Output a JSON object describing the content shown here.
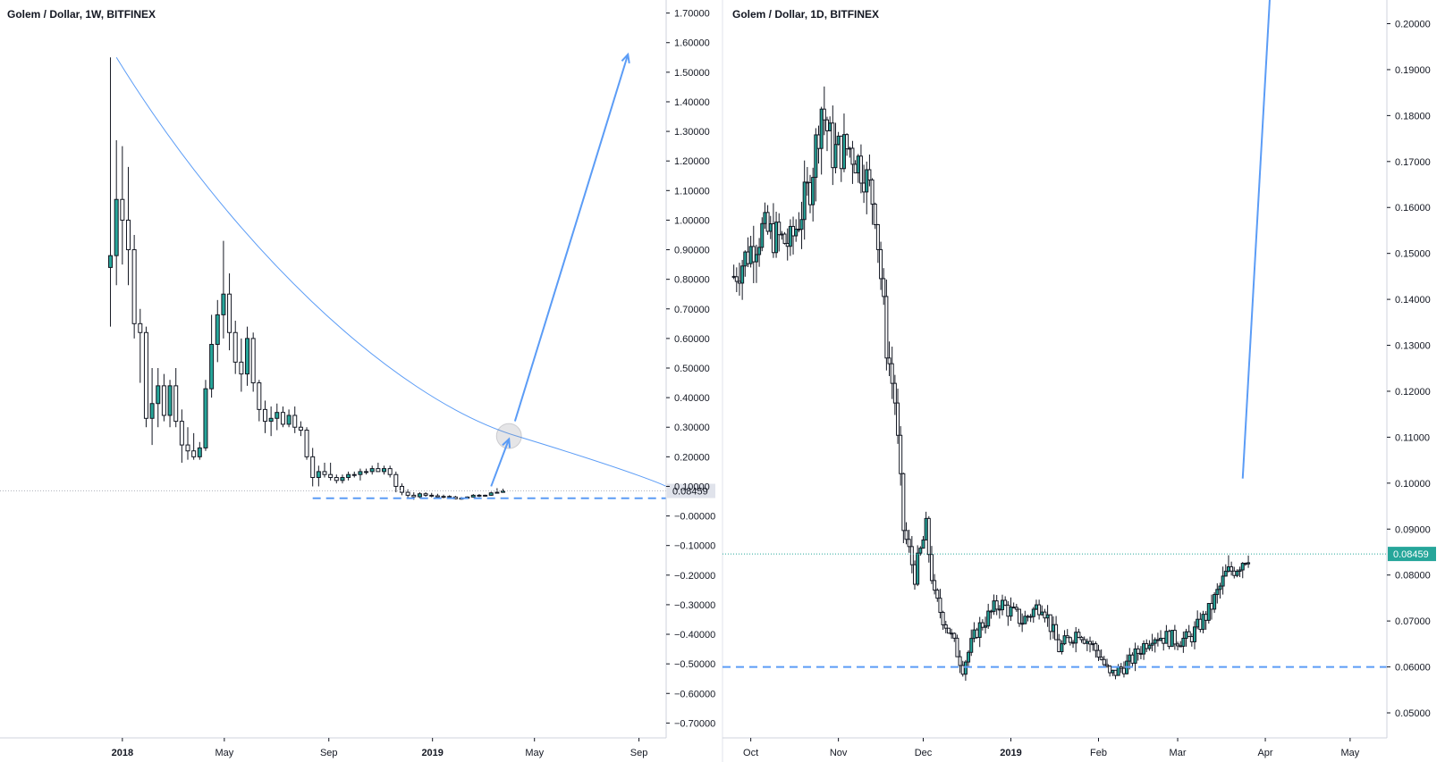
{
  "chart_data": [
    {
      "type": "candlestick",
      "title": "Golem / Dollar, 1W, BITFINEX",
      "y_ticks": [
        "1.70000",
        "1.60000",
        "1.50000",
        "1.40000",
        "1.30000",
        "1.20000",
        "1.10000",
        "1.00000",
        "0.90000",
        "0.80000",
        "0.70000",
        "0.60000",
        "0.50000",
        "0.40000",
        "0.30000",
        "0.20000",
        "0.10000",
        "−0.00000",
        "−0.10000",
        "−0.20000",
        "−0.30000",
        "−0.40000",
        "−0.50000",
        "−0.60000",
        "−0.70000"
      ],
      "x_ticks": [
        {
          "label": "2018",
          "date": "2018-01-01",
          "bold": true
        },
        {
          "label": "May",
          "date": "2018-05-01",
          "bold": false
        },
        {
          "label": "Sep",
          "date": "2018-09-01",
          "bold": false
        },
        {
          "label": "2019",
          "date": "2019-01-01",
          "bold": true
        },
        {
          "label": "May",
          "date": "2019-05-01",
          "bold": false
        },
        {
          "label": "Sep",
          "date": "2019-09-01",
          "bold": false
        }
      ],
      "ylim": [
        -0.72,
        1.72
      ],
      "xlim": [
        "2017-08-10",
        "2019-10-03"
      ],
      "last_price": {
        "label": "0.08459",
        "value": 0.08459
      },
      "support_level": 0.06,
      "annotations": {
        "arc": [
          {
            "date": "2017-12-25",
            "price": 1.55
          },
          {
            "date": "2018-05-07",
            "price": 0.93
          },
          {
            "date": "2018-11-12",
            "price": 0.4
          },
          {
            "date": "2019-04-10",
            "price": 0.27
          },
          {
            "date": "2019-10-03",
            "price": 0.1
          }
        ],
        "arrow_small": [
          {
            "date": "2019-03-11",
            "price": 0.1
          },
          {
            "date": "2019-04-01",
            "price": 0.26
          }
        ],
        "circle": {
          "date": "2019-04-01",
          "price": 0.27
        },
        "arrow_big": [
          {
            "date": "2019-04-08",
            "price": 0.32
          },
          {
            "date": "2019-08-19",
            "price": 1.56
          }
        ]
      },
      "candles": [
        {
          "date": "2017-12-18",
          "o": 0.84,
          "h": 1.55,
          "l": 0.64,
          "c": 0.88
        },
        {
          "date": "2017-12-25",
          "o": 0.88,
          "h": 1.27,
          "l": 0.78,
          "c": 1.07
        },
        {
          "date": "2018-01-01",
          "o": 1.07,
          "h": 1.25,
          "l": 0.85,
          "c": 1.0
        },
        {
          "date": "2018-01-08",
          "o": 1.0,
          "h": 1.18,
          "l": 0.78,
          "c": 0.9
        },
        {
          "date": "2018-01-15",
          "o": 0.9,
          "h": 0.95,
          "l": 0.6,
          "c": 0.65
        },
        {
          "date": "2018-01-22",
          "o": 0.65,
          "h": 0.7,
          "l": 0.45,
          "c": 0.62
        },
        {
          "date": "2018-01-29",
          "o": 0.62,
          "h": 0.64,
          "l": 0.3,
          "c": 0.33
        },
        {
          "date": "2018-02-05",
          "o": 0.33,
          "h": 0.5,
          "l": 0.24,
          "c": 0.38
        },
        {
          "date": "2018-02-12",
          "o": 0.38,
          "h": 0.5,
          "l": 0.3,
          "c": 0.44
        },
        {
          "date": "2018-02-19",
          "o": 0.44,
          "h": 0.48,
          "l": 0.32,
          "c": 0.34
        },
        {
          "date": "2018-02-26",
          "o": 0.34,
          "h": 0.46,
          "l": 0.3,
          "c": 0.44
        },
        {
          "date": "2018-03-05",
          "o": 0.44,
          "h": 0.5,
          "l": 0.3,
          "c": 0.32
        },
        {
          "date": "2018-03-12",
          "o": 0.32,
          "h": 0.36,
          "l": 0.18,
          "c": 0.24
        },
        {
          "date": "2018-03-19",
          "o": 0.24,
          "h": 0.3,
          "l": 0.19,
          "c": 0.22
        },
        {
          "date": "2018-03-26",
          "o": 0.22,
          "h": 0.28,
          "l": 0.19,
          "c": 0.2
        },
        {
          "date": "2018-04-02",
          "o": 0.2,
          "h": 0.25,
          "l": 0.19,
          "c": 0.23
        },
        {
          "date": "2018-04-09",
          "o": 0.23,
          "h": 0.46,
          "l": 0.22,
          "c": 0.43
        },
        {
          "date": "2018-04-16",
          "o": 0.43,
          "h": 0.68,
          "l": 0.4,
          "c": 0.58
        },
        {
          "date": "2018-04-23",
          "o": 0.58,
          "h": 0.73,
          "l": 0.52,
          "c": 0.68
        },
        {
          "date": "2018-04-30",
          "o": 0.68,
          "h": 0.93,
          "l": 0.6,
          "c": 0.75
        },
        {
          "date": "2018-05-07",
          "o": 0.75,
          "h": 0.82,
          "l": 0.56,
          "c": 0.62
        },
        {
          "date": "2018-05-14",
          "o": 0.62,
          "h": 0.66,
          "l": 0.48,
          "c": 0.52
        },
        {
          "date": "2018-05-21",
          "o": 0.52,
          "h": 0.6,
          "l": 0.42,
          "c": 0.48
        },
        {
          "date": "2018-05-28",
          "o": 0.48,
          "h": 0.64,
          "l": 0.44,
          "c": 0.6
        },
        {
          "date": "2018-06-04",
          "o": 0.6,
          "h": 0.62,
          "l": 0.42,
          "c": 0.45
        },
        {
          "date": "2018-06-11",
          "o": 0.45,
          "h": 0.46,
          "l": 0.32,
          "c": 0.36
        },
        {
          "date": "2018-06-18",
          "o": 0.36,
          "h": 0.39,
          "l": 0.28,
          "c": 0.32
        },
        {
          "date": "2018-06-25",
          "o": 0.32,
          "h": 0.37,
          "l": 0.27,
          "c": 0.33
        },
        {
          "date": "2018-07-02",
          "o": 0.33,
          "h": 0.38,
          "l": 0.29,
          "c": 0.35
        },
        {
          "date": "2018-07-09",
          "o": 0.35,
          "h": 0.37,
          "l": 0.3,
          "c": 0.31
        },
        {
          "date": "2018-07-16",
          "o": 0.31,
          "h": 0.36,
          "l": 0.3,
          "c": 0.34
        },
        {
          "date": "2018-07-23",
          "o": 0.34,
          "h": 0.37,
          "l": 0.28,
          "c": 0.3
        },
        {
          "date": "2018-07-30",
          "o": 0.3,
          "h": 0.32,
          "l": 0.27,
          "c": 0.29
        },
        {
          "date": "2018-08-06",
          "o": 0.29,
          "h": 0.3,
          "l": 0.19,
          "c": 0.2
        },
        {
          "date": "2018-08-13",
          "o": 0.2,
          "h": 0.23,
          "l": 0.1,
          "c": 0.13
        },
        {
          "date": "2018-08-20",
          "o": 0.13,
          "h": 0.17,
          "l": 0.1,
          "c": 0.15
        },
        {
          "date": "2018-08-27",
          "o": 0.15,
          "h": 0.18,
          "l": 0.13,
          "c": 0.14
        },
        {
          "date": "2018-09-03",
          "o": 0.14,
          "h": 0.18,
          "l": 0.12,
          "c": 0.13
        },
        {
          "date": "2018-09-10",
          "o": 0.13,
          "h": 0.14,
          "l": 0.11,
          "c": 0.12
        },
        {
          "date": "2018-09-17",
          "o": 0.12,
          "h": 0.14,
          "l": 0.11,
          "c": 0.13
        },
        {
          "date": "2018-09-24",
          "o": 0.13,
          "h": 0.15,
          "l": 0.12,
          "c": 0.14
        },
        {
          "date": "2018-10-01",
          "o": 0.14,
          "h": 0.15,
          "l": 0.13,
          "c": 0.14
        },
        {
          "date": "2018-10-08",
          "o": 0.14,
          "h": 0.16,
          "l": 0.12,
          "c": 0.15
        },
        {
          "date": "2018-10-15",
          "o": 0.15,
          "h": 0.16,
          "l": 0.14,
          "c": 0.15
        },
        {
          "date": "2018-10-22",
          "o": 0.15,
          "h": 0.17,
          "l": 0.14,
          "c": 0.16
        },
        {
          "date": "2018-10-29",
          "o": 0.16,
          "h": 0.18,
          "l": 0.15,
          "c": 0.15
        },
        {
          "date": "2018-11-05",
          "o": 0.15,
          "h": 0.17,
          "l": 0.14,
          "c": 0.16
        },
        {
          "date": "2018-11-12",
          "o": 0.16,
          "h": 0.17,
          "l": 0.13,
          "c": 0.14
        },
        {
          "date": "2018-11-19",
          "o": 0.14,
          "h": 0.15,
          "l": 0.08,
          "c": 0.1
        },
        {
          "date": "2018-11-26",
          "o": 0.1,
          "h": 0.11,
          "l": 0.07,
          "c": 0.08
        },
        {
          "date": "2018-12-03",
          "o": 0.08,
          "h": 0.09,
          "l": 0.06,
          "c": 0.07
        },
        {
          "date": "2018-12-10",
          "o": 0.07,
          "h": 0.08,
          "l": 0.055,
          "c": 0.065
        },
        {
          "date": "2018-12-17",
          "o": 0.065,
          "h": 0.08,
          "l": 0.06,
          "c": 0.075
        },
        {
          "date": "2018-12-24",
          "o": 0.075,
          "h": 0.08,
          "l": 0.065,
          "c": 0.07
        },
        {
          "date": "2018-12-31",
          "o": 0.07,
          "h": 0.078,
          "l": 0.063,
          "c": 0.068
        },
        {
          "date": "2019-01-07",
          "o": 0.068,
          "h": 0.075,
          "l": 0.06,
          "c": 0.064
        },
        {
          "date": "2019-01-14",
          "o": 0.064,
          "h": 0.072,
          "l": 0.06,
          "c": 0.066
        },
        {
          "date": "2019-01-21",
          "o": 0.066,
          "h": 0.07,
          "l": 0.062,
          "c": 0.064
        },
        {
          "date": "2019-01-28",
          "o": 0.064,
          "h": 0.068,
          "l": 0.056,
          "c": 0.058
        },
        {
          "date": "2019-02-04",
          "o": 0.058,
          "h": 0.064,
          "l": 0.055,
          "c": 0.06
        },
        {
          "date": "2019-02-11",
          "o": 0.06,
          "h": 0.066,
          "l": 0.058,
          "c": 0.064
        },
        {
          "date": "2019-02-18",
          "o": 0.064,
          "h": 0.074,
          "l": 0.062,
          "c": 0.07
        },
        {
          "date": "2019-02-25",
          "o": 0.07,
          "h": 0.074,
          "l": 0.064,
          "c": 0.068
        },
        {
          "date": "2019-03-04",
          "o": 0.068,
          "h": 0.072,
          "l": 0.065,
          "c": 0.07
        },
        {
          "date": "2019-03-11",
          "o": 0.07,
          "h": 0.082,
          "l": 0.068,
          "c": 0.078
        },
        {
          "date": "2019-03-18",
          "o": 0.078,
          "h": 0.094,
          "l": 0.076,
          "c": 0.08
        },
        {
          "date": "2019-03-25",
          "o": 0.08,
          "h": 0.092,
          "l": 0.078,
          "c": 0.0846
        }
      ]
    },
    {
      "type": "candlestick",
      "title": "Golem / Dollar, 1D, BITFINEX",
      "y_ticks": [
        "0.20000",
        "0.19000",
        "0.18000",
        "0.17000",
        "0.16000",
        "0.15000",
        "0.14000",
        "0.13000",
        "0.12000",
        "0.11000",
        "0.10000",
        "0.09000",
        "0.08000",
        "0.07000",
        "0.06000",
        "0.05000"
      ],
      "x_ticks": [
        {
          "label": "Oct",
          "date": "2018-10-01",
          "bold": false
        },
        {
          "label": "Nov",
          "date": "2018-11-01",
          "bold": false
        },
        {
          "label": "Dec",
          "date": "2018-12-01",
          "bold": false
        },
        {
          "label": "2019",
          "date": "2019-01-01",
          "bold": true
        },
        {
          "label": "Feb",
          "date": "2019-02-01",
          "bold": false
        },
        {
          "label": "Mar",
          "date": "2019-03-01",
          "bold": false
        },
        {
          "label": "Apr",
          "date": "2019-04-01",
          "bold": false
        },
        {
          "label": "May",
          "date": "2019-05-01",
          "bold": false
        }
      ],
      "ylim": [
        0.0465,
        0.2036
      ],
      "xlim": [
        "2018-09-21",
        "2019-05-14"
      ],
      "last_price": {
        "label": "0.08459",
        "value": 0.08459
      },
      "support_level": 0.06,
      "annotations": {
        "trend_line": [
          {
            "date": "2019-03-24",
            "price": 0.101
          },
          {
            "date": "2019-04-03",
            "price": 0.21
          }
        ]
      },
      "candle_seed": {
        "start": "2018-09-25",
        "end": "2019-03-26"
      },
      "path": [
        {
          "date": "2018-09-25",
          "price": 0.145
        },
        {
          "date": "2018-10-05",
          "price": 0.155
        },
        {
          "date": "2018-10-15",
          "price": 0.152
        },
        {
          "date": "2018-10-22",
          "price": 0.165
        },
        {
          "date": "2018-10-26",
          "price": 0.182
        },
        {
          "date": "2018-10-30",
          "price": 0.172
        },
        {
          "date": "2018-11-05",
          "price": 0.173
        },
        {
          "date": "2018-11-10",
          "price": 0.168
        },
        {
          "date": "2018-11-14",
          "price": 0.16
        },
        {
          "date": "2018-11-18",
          "price": 0.13
        },
        {
          "date": "2018-11-21",
          "price": 0.118
        },
        {
          "date": "2018-11-24",
          "price": 0.09
        },
        {
          "date": "2018-11-28",
          "price": 0.08
        },
        {
          "date": "2018-12-02",
          "price": 0.09
        },
        {
          "date": "2018-12-05",
          "price": 0.075
        },
        {
          "date": "2018-12-10",
          "price": 0.068
        },
        {
          "date": "2018-12-15",
          "price": 0.06
        },
        {
          "date": "2018-12-20",
          "price": 0.068
        },
        {
          "date": "2018-12-28",
          "price": 0.074
        },
        {
          "date": "2019-01-05",
          "price": 0.07
        },
        {
          "date": "2019-01-12",
          "price": 0.074
        },
        {
          "date": "2019-01-18",
          "price": 0.064
        },
        {
          "date": "2019-01-25",
          "price": 0.068
        },
        {
          "date": "2019-02-01",
          "price": 0.063
        },
        {
          "date": "2019-02-05",
          "price": 0.058
        },
        {
          "date": "2019-02-12",
          "price": 0.061
        },
        {
          "date": "2019-02-20",
          "price": 0.067
        },
        {
          "date": "2019-02-28",
          "price": 0.066
        },
        {
          "date": "2019-03-05",
          "price": 0.066
        },
        {
          "date": "2019-03-12",
          "price": 0.072
        },
        {
          "date": "2019-03-18",
          "price": 0.08
        },
        {
          "date": "2019-03-22",
          "price": 0.082
        },
        {
          "date": "2019-03-26",
          "price": 0.0846
        }
      ]
    }
  ]
}
